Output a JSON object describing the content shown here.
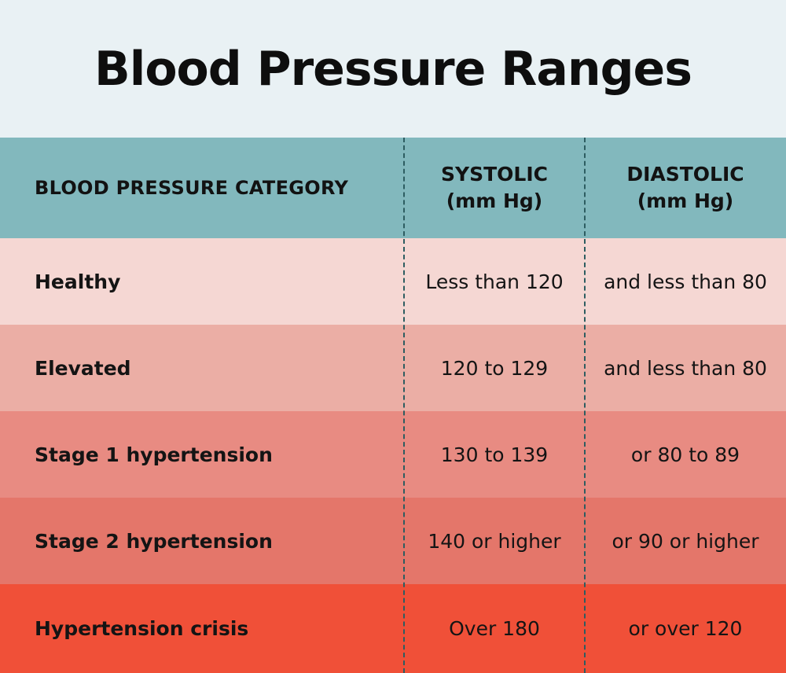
{
  "title": "Blood Pressure Ranges",
  "colors": {
    "background": "#e9f1f4",
    "header": "#82b8bd",
    "divider": "#2d5d61",
    "row_healthy": "#f5d7d3",
    "row_elevated": "#ebaea5",
    "row_stage1": "#e88b82",
    "row_stage2": "#e4766a",
    "row_crisis": "#f05038"
  },
  "table": {
    "headers": {
      "category": "BLOOD PRESSURE CATEGORY",
      "systolic_line1": "SYSTOLIC",
      "systolic_line2": "(mm Hg)",
      "diastolic_line1": "DIASTOLIC",
      "diastolic_line2": "(mm Hg)"
    },
    "rows": [
      {
        "category": "Healthy",
        "systolic": "Less than 120",
        "diastolic": "and less than 80"
      },
      {
        "category": "Elevated",
        "systolic": "120 to 129",
        "diastolic": "and less than 80"
      },
      {
        "category": "Stage 1 hypertension",
        "systolic": "130 to 139",
        "diastolic": "or 80 to 89"
      },
      {
        "category": "Stage 2 hypertension",
        "systolic": "140 or higher",
        "diastolic": "or 90 or higher"
      },
      {
        "category": "Hypertension crisis",
        "systolic": "Over 180",
        "diastolic": "or over 120"
      }
    ]
  }
}
